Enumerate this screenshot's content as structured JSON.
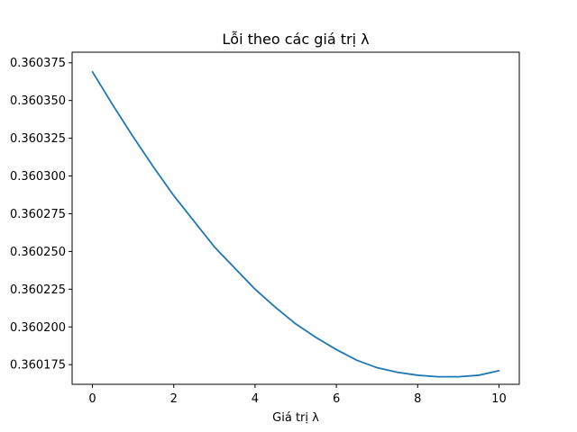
{
  "chart_data": {
    "type": "line",
    "title": "Lỗi theo các giá trị λ",
    "xlabel": "Giá trị λ",
    "ylabel": "",
    "xlim": [
      -0.5,
      10.5
    ],
    "ylim": [
      0.360162,
      0.360382
    ],
    "xticks": [
      0,
      2,
      4,
      6,
      8,
      10
    ],
    "xtick_labels": [
      "0",
      "2",
      "4",
      "6",
      "8",
      "10"
    ],
    "yticks": [
      0.360175,
      0.3602,
      0.360225,
      0.36025,
      0.360275,
      0.3603,
      0.360325,
      0.36035,
      0.360375
    ],
    "ytick_labels": [
      "0.360175",
      "0.360200",
      "0.360225",
      "0.360250",
      "0.360275",
      "0.360300",
      "0.360325",
      "0.360350",
      "0.360375"
    ],
    "grid": false,
    "line_color": "#1f77b4",
    "series": [
      {
        "x": [
          0,
          0.5,
          1.0,
          1.5,
          2.0,
          2.5,
          3.0,
          3.5,
          4.0,
          4.5,
          5.0,
          5.5,
          6.0,
          6.5,
          7.0,
          7.5,
          8.0,
          8.5,
          9.0,
          9.5,
          10.0
        ],
        "y": [
          0.360369,
          0.360347,
          0.360326,
          0.360306,
          0.360287,
          0.36027,
          0.360253,
          0.360239,
          0.360225,
          0.360213,
          0.360202,
          0.360193,
          0.360185,
          0.360178,
          0.360173,
          0.36017,
          0.360168,
          0.360167,
          0.360167,
          0.360168,
          0.360171
        ]
      }
    ]
  }
}
